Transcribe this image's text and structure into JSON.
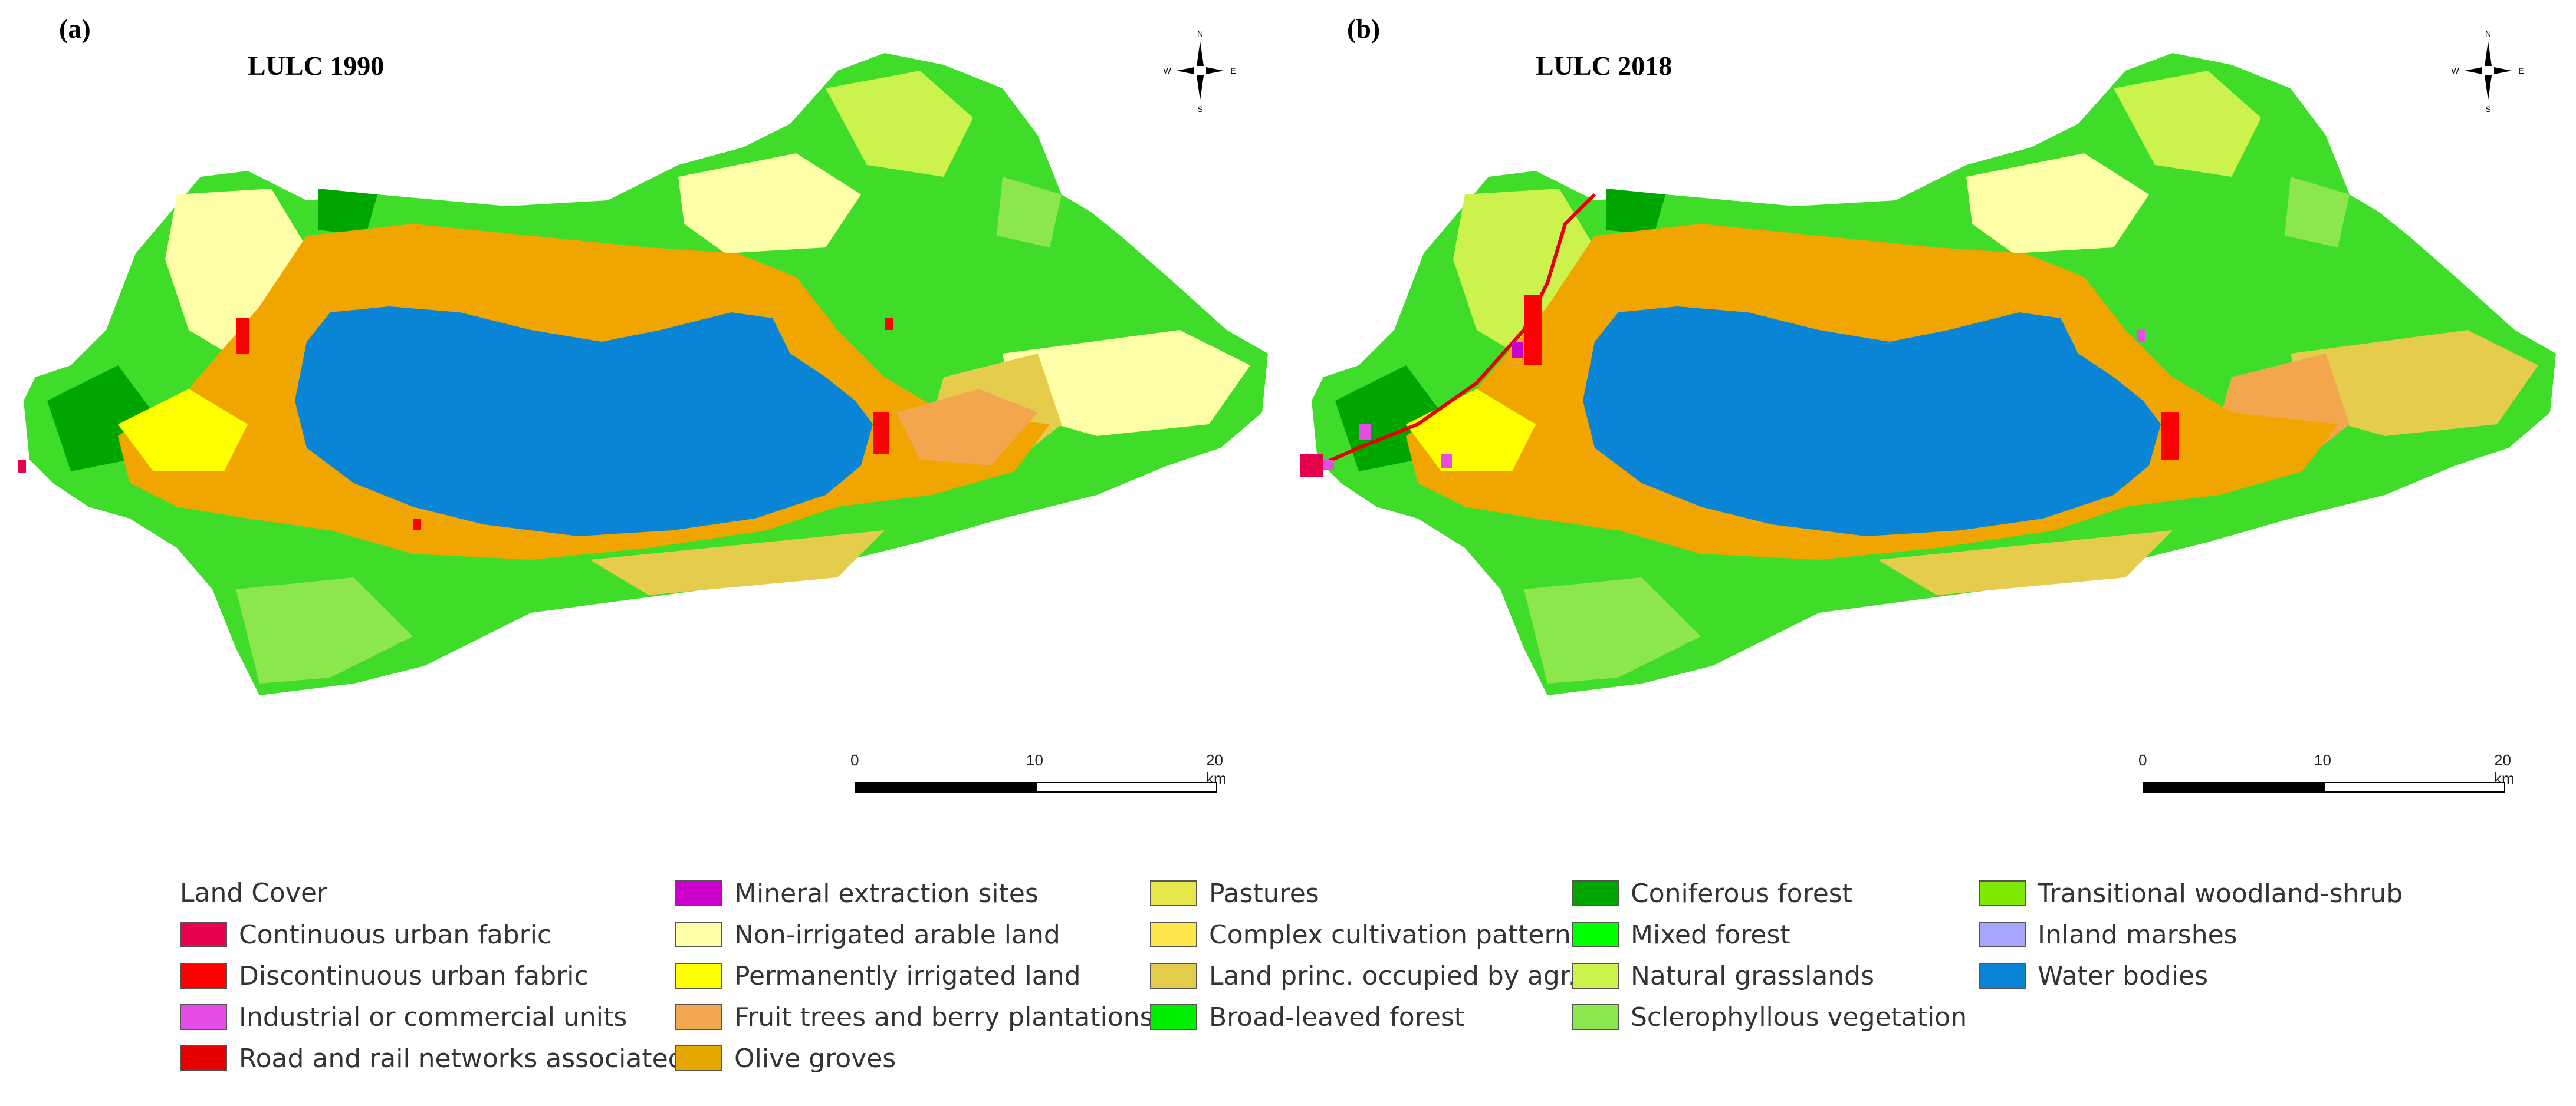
{
  "panels": [
    {
      "letter": "(a)",
      "title": "LULC 1990"
    },
    {
      "letter": "(b)",
      "title": "LULC 2018"
    }
  ],
  "compass": {
    "n": "N",
    "s": "S",
    "e": "E",
    "w": "W"
  },
  "scalebar": {
    "ticks": [
      "0",
      "10",
      "20 km"
    ]
  },
  "legend": {
    "title": "Land Cover",
    "items": [
      {
        "label": "Continuous urban fabric",
        "color": "#e6004d"
      },
      {
        "label": "Discontinuous urban fabric",
        "color": "#ff0000"
      },
      {
        "label": "Industrial or commercial units",
        "color": "#e64ce6"
      },
      {
        "label": "Road and rail networks associated",
        "color": "#e60000"
      },
      {
        "label": "Mineral extraction sites",
        "color": "#cc00cc"
      },
      {
        "label": "Non-irrigated arable land",
        "color": "#ffffa8"
      },
      {
        "label": "Permanently irrigated land",
        "color": "#ffff00"
      },
      {
        "label": "Fruit trees and berry plantations",
        "color": "#f2a64d"
      },
      {
        "label": "Olive groves",
        "color": "#e6a600"
      },
      {
        "label": "Pastures",
        "color": "#e6e64d"
      },
      {
        "label": "Complex cultivation patterns",
        "color": "#ffe64d"
      },
      {
        "label": "Land princ. occupied by agr.",
        "color": "#e6cc4d"
      },
      {
        "label": "Broad-leaved forest",
        "color": "#00ee00"
      },
      {
        "label": "Coniferous forest",
        "color": "#00a600"
      },
      {
        "label": "Mixed forest",
        "color": "#00ff00"
      },
      {
        "label": "Natural grasslands",
        "color": "#ccf24d"
      },
      {
        "label": "Sclerophyllous vegetation",
        "color": "#8ce64d"
      },
      {
        "label": "Transitional woodland-shrub",
        "color": "#7ee800"
      },
      {
        "label": "Inland marshes",
        "color": "#a6a6ff"
      },
      {
        "label": "Water bodies",
        "color": "#0a85d6"
      }
    ]
  }
}
